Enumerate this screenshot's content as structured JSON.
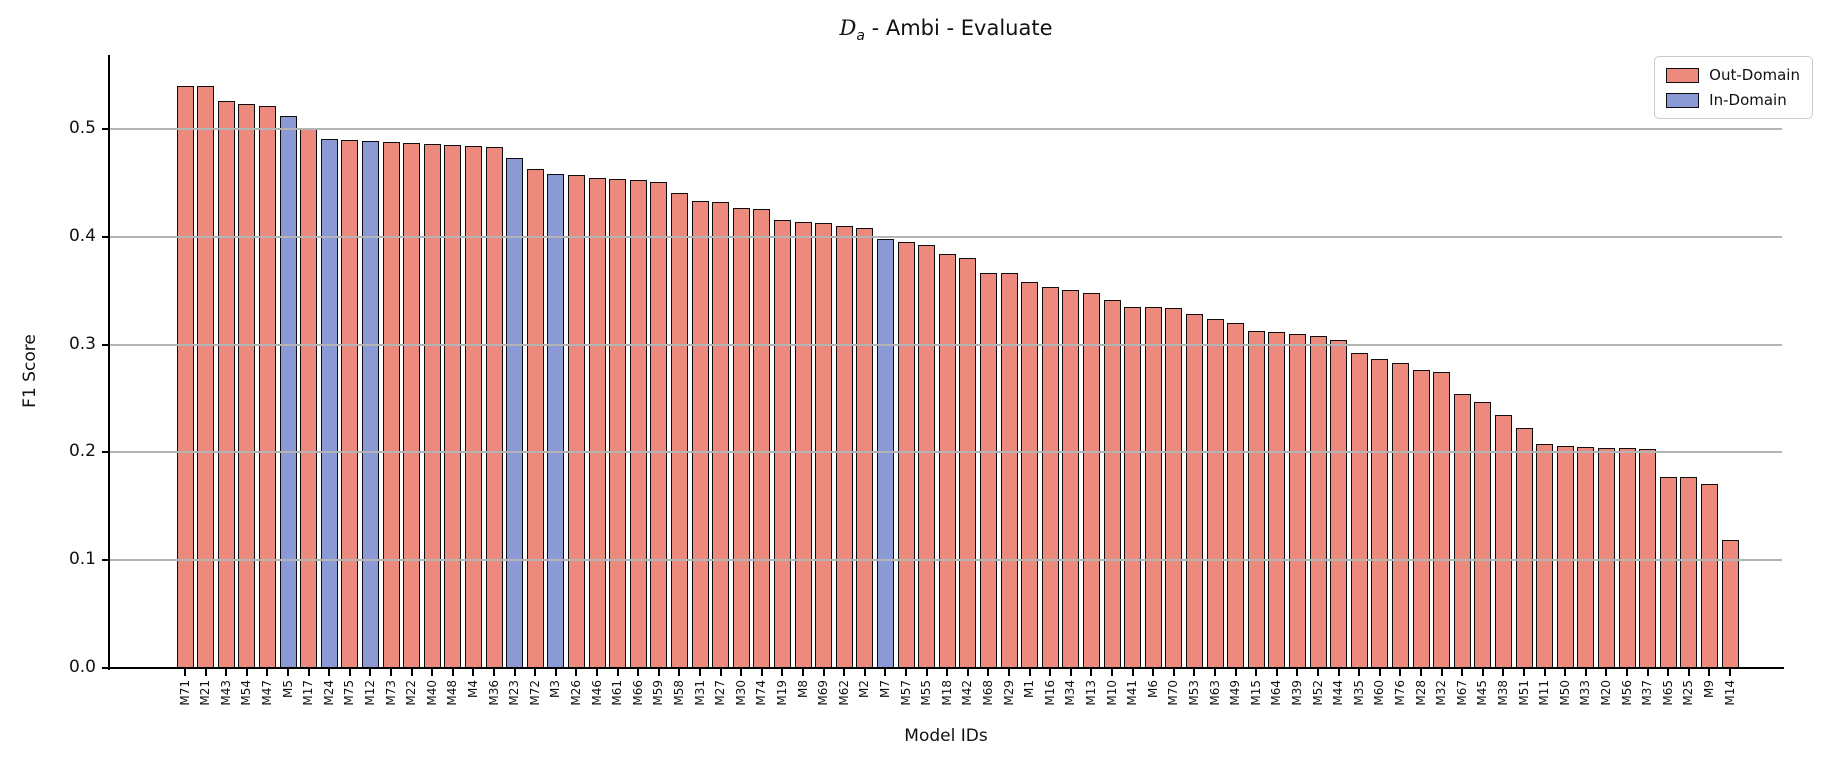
{
  "title": {
    "script_d": "D",
    "subscript": "a",
    "rest": " - Ambi - Evaluate"
  },
  "ylabel": "F1 Score",
  "xlabel": "Model IDs",
  "legend": {
    "items": [
      {
        "label": "Out-Domain",
        "color": "#EC8A7E"
      },
      {
        "label": "In-Domain",
        "color": "#8B9AD4"
      }
    ]
  },
  "chart_data": {
    "type": "bar",
    "title": "D_a - Ambi - Evaluate",
    "xlabel": "Model IDs",
    "ylabel": "F1 Score",
    "ylim": [
      0,
      0.57
    ],
    "yticks": [
      0.0,
      0.1,
      0.2,
      0.3,
      0.4,
      0.5
    ],
    "ytick_labels": [
      "0.0",
      "0.1",
      "0.2",
      "0.3",
      "0.4",
      "0.5"
    ],
    "grid": true,
    "grid_over_bars": true,
    "legend_position": "upper right",
    "colors": {
      "out": "#EC8A7E",
      "in": "#8B9AD4",
      "edge": "#0d0d0d"
    },
    "bars": [
      {
        "id": "M71",
        "value": 0.54,
        "domain": "out"
      },
      {
        "id": "M21",
        "value": 0.54,
        "domain": "out"
      },
      {
        "id": "M43",
        "value": 0.526,
        "domain": "out"
      },
      {
        "id": "M54",
        "value": 0.523,
        "domain": "out"
      },
      {
        "id": "M47",
        "value": 0.521,
        "domain": "out"
      },
      {
        "id": "M5",
        "value": 0.512,
        "domain": "in"
      },
      {
        "id": "M17",
        "value": 0.501,
        "domain": "out"
      },
      {
        "id": "M24",
        "value": 0.491,
        "domain": "in"
      },
      {
        "id": "M75",
        "value": 0.49,
        "domain": "out"
      },
      {
        "id": "M12",
        "value": 0.489,
        "domain": "in"
      },
      {
        "id": "M73",
        "value": 0.488,
        "domain": "out"
      },
      {
        "id": "M22",
        "value": 0.487,
        "domain": "out"
      },
      {
        "id": "M40",
        "value": 0.486,
        "domain": "out"
      },
      {
        "id": "M48",
        "value": 0.485,
        "domain": "out"
      },
      {
        "id": "M4",
        "value": 0.484,
        "domain": "out"
      },
      {
        "id": "M36",
        "value": 0.483,
        "domain": "out"
      },
      {
        "id": "M23",
        "value": 0.473,
        "domain": "in"
      },
      {
        "id": "M72",
        "value": 0.463,
        "domain": "out"
      },
      {
        "id": "M3",
        "value": 0.458,
        "domain": "in"
      },
      {
        "id": "M26",
        "value": 0.457,
        "domain": "out"
      },
      {
        "id": "M46",
        "value": 0.455,
        "domain": "out"
      },
      {
        "id": "M61",
        "value": 0.454,
        "domain": "out"
      },
      {
        "id": "M66",
        "value": 0.453,
        "domain": "out"
      },
      {
        "id": "M59",
        "value": 0.451,
        "domain": "out"
      },
      {
        "id": "M58",
        "value": 0.441,
        "domain": "out"
      },
      {
        "id": "M31",
        "value": 0.433,
        "domain": "out"
      },
      {
        "id": "M27",
        "value": 0.432,
        "domain": "out"
      },
      {
        "id": "M30",
        "value": 0.427,
        "domain": "out"
      },
      {
        "id": "M74",
        "value": 0.426,
        "domain": "out"
      },
      {
        "id": "M19",
        "value": 0.416,
        "domain": "out"
      },
      {
        "id": "M8",
        "value": 0.414,
        "domain": "out"
      },
      {
        "id": "M69",
        "value": 0.413,
        "domain": "out"
      },
      {
        "id": "M62",
        "value": 0.41,
        "domain": "out"
      },
      {
        "id": "M2",
        "value": 0.408,
        "domain": "out"
      },
      {
        "id": "M7",
        "value": 0.398,
        "domain": "in"
      },
      {
        "id": "M57",
        "value": 0.395,
        "domain": "out"
      },
      {
        "id": "M55",
        "value": 0.392,
        "domain": "out"
      },
      {
        "id": "M18",
        "value": 0.384,
        "domain": "out"
      },
      {
        "id": "M42",
        "value": 0.38,
        "domain": "out"
      },
      {
        "id": "M68",
        "value": 0.366,
        "domain": "out"
      },
      {
        "id": "M29",
        "value": 0.366,
        "domain": "out"
      },
      {
        "id": "M1",
        "value": 0.358,
        "domain": "out"
      },
      {
        "id": "M16",
        "value": 0.353,
        "domain": "out"
      },
      {
        "id": "M34",
        "value": 0.351,
        "domain": "out"
      },
      {
        "id": "M13",
        "value": 0.348,
        "domain": "out"
      },
      {
        "id": "M10",
        "value": 0.341,
        "domain": "out"
      },
      {
        "id": "M41",
        "value": 0.335,
        "domain": "out"
      },
      {
        "id": "M6",
        "value": 0.335,
        "domain": "out"
      },
      {
        "id": "M70",
        "value": 0.334,
        "domain": "out"
      },
      {
        "id": "M53",
        "value": 0.328,
        "domain": "out"
      },
      {
        "id": "M63",
        "value": 0.324,
        "domain": "out"
      },
      {
        "id": "M49",
        "value": 0.32,
        "domain": "out"
      },
      {
        "id": "M15",
        "value": 0.313,
        "domain": "out"
      },
      {
        "id": "M64",
        "value": 0.312,
        "domain": "out"
      },
      {
        "id": "M39",
        "value": 0.31,
        "domain": "out"
      },
      {
        "id": "M52",
        "value": 0.308,
        "domain": "out"
      },
      {
        "id": "M44",
        "value": 0.304,
        "domain": "out"
      },
      {
        "id": "M35",
        "value": 0.292,
        "domain": "out"
      },
      {
        "id": "M60",
        "value": 0.287,
        "domain": "out"
      },
      {
        "id": "M76",
        "value": 0.283,
        "domain": "out"
      },
      {
        "id": "M28",
        "value": 0.276,
        "domain": "out"
      },
      {
        "id": "M32",
        "value": 0.275,
        "domain": "out"
      },
      {
        "id": "M67",
        "value": 0.254,
        "domain": "out"
      },
      {
        "id": "M45",
        "value": 0.247,
        "domain": "out"
      },
      {
        "id": "M38",
        "value": 0.235,
        "domain": "out"
      },
      {
        "id": "M51",
        "value": 0.223,
        "domain": "out"
      },
      {
        "id": "M11",
        "value": 0.208,
        "domain": "out"
      },
      {
        "id": "M50",
        "value": 0.206,
        "domain": "out"
      },
      {
        "id": "M33",
        "value": 0.205,
        "domain": "out"
      },
      {
        "id": "M20",
        "value": 0.204,
        "domain": "out"
      },
      {
        "id": "M56",
        "value": 0.204,
        "domain": "out"
      },
      {
        "id": "M37",
        "value": 0.203,
        "domain": "out"
      },
      {
        "id": "M65",
        "value": 0.177,
        "domain": "out"
      },
      {
        "id": "M25",
        "value": 0.177,
        "domain": "out"
      },
      {
        "id": "M9",
        "value": 0.171,
        "domain": "out"
      },
      {
        "id": "M14",
        "value": 0.119,
        "domain": "out"
      }
    ]
  }
}
